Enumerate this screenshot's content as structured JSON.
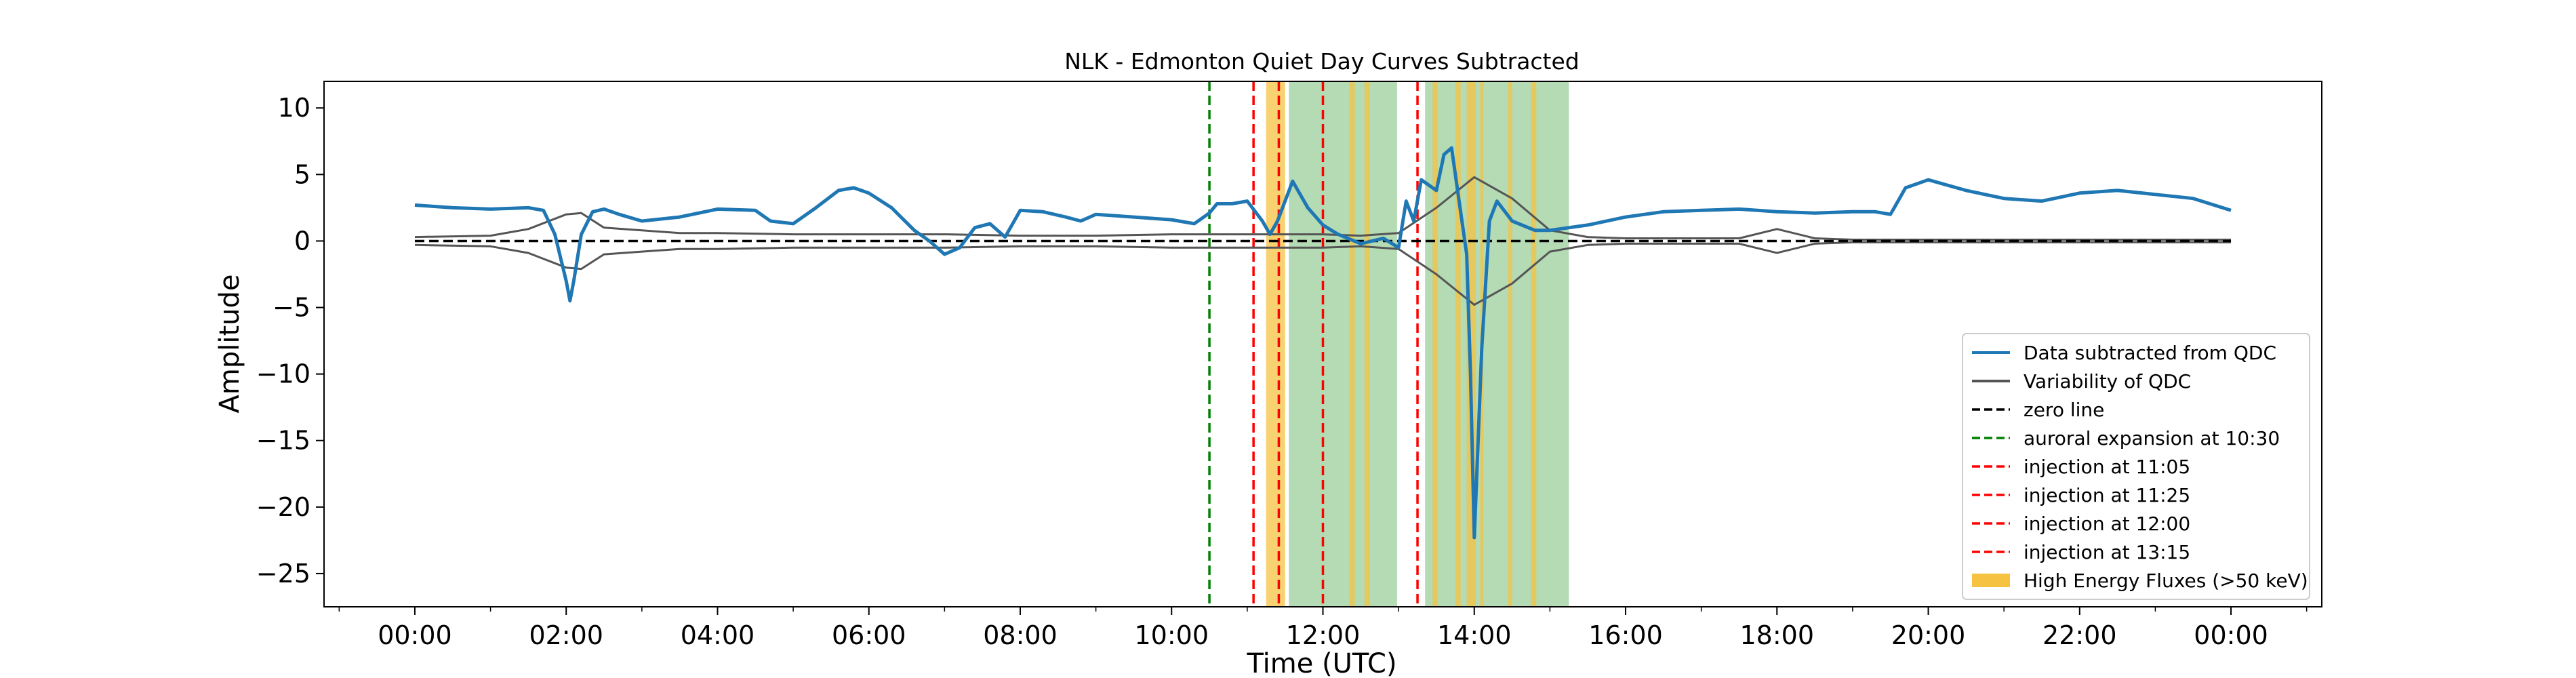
{
  "chart_data": {
    "type": "line",
    "title": "NLK - Edmonton  Quiet Day Curves Subtracted",
    "xlabel": "Time (UTC)",
    "ylabel": "Amplitude",
    "xlim": [
      -1.2,
      25.2
    ],
    "ylim": [
      -27.5,
      12.0
    ],
    "x_ticks": [
      0,
      2,
      4,
      6,
      8,
      10,
      12,
      14,
      16,
      18,
      20,
      22,
      24
    ],
    "x_tick_labels": [
      "00:00",
      "02:00",
      "04:00",
      "06:00",
      "08:00",
      "10:00",
      "12:00",
      "14:00",
      "16:00",
      "18:00",
      "20:00",
      "22:00",
      "00:00"
    ],
    "y_ticks": [
      10,
      5,
      0,
      -5,
      -10,
      -15,
      -20,
      -25
    ],
    "y_tick_labels": [
      "10",
      "5",
      "0",
      "−5",
      "−10",
      "−15",
      "−20",
      "−25"
    ],
    "grid": false,
    "legend_position": "lower-right",
    "colors": {
      "data": "#1f77b4",
      "variability": "#555555",
      "zero": "#000000",
      "auroral": "#008000",
      "injection": "#ff0000",
      "high_energy": "#f5c242",
      "green_band": "#82c382"
    },
    "series": [
      {
        "name": "Data subtracted from QDC",
        "x": [
          0,
          0.5,
          1.0,
          1.5,
          1.7,
          1.85,
          2.0,
          2.05,
          2.1,
          2.2,
          2.35,
          2.5,
          2.7,
          3.0,
          3.5,
          4.0,
          4.5,
          4.7,
          5.0,
          5.3,
          5.6,
          5.8,
          6.0,
          6.3,
          6.6,
          6.8,
          7.0,
          7.2,
          7.4,
          7.6,
          7.8,
          8.0,
          8.3,
          8.6,
          8.8,
          9.0,
          9.5,
          10.0,
          10.3,
          10.5,
          10.6,
          10.8,
          11.0,
          11.2,
          11.3,
          11.4,
          11.6,
          11.8,
          12.0,
          12.2,
          12.5,
          12.8,
          13.0,
          13.1,
          13.2,
          13.3,
          13.5,
          13.6,
          13.7,
          13.8,
          13.9,
          13.95,
          14.0,
          14.1,
          14.2,
          14.3,
          14.5,
          14.8,
          15.0,
          15.5,
          16.0,
          16.5,
          17.0,
          17.5,
          18.0,
          18.5,
          19.0,
          19.3,
          19.5,
          19.7,
          20.0,
          20.5,
          21.0,
          21.5,
          22.0,
          22.5,
          23.0,
          23.5,
          24.0
        ],
        "y": [
          2.7,
          2.5,
          2.4,
          2.5,
          2.3,
          0.5,
          -3.0,
          -4.5,
          -3.0,
          0.5,
          2.2,
          2.4,
          2.0,
          1.5,
          1.8,
          2.4,
          2.3,
          1.5,
          1.3,
          2.5,
          3.8,
          4.0,
          3.6,
          2.5,
          0.8,
          0.0,
          -1.0,
          -0.5,
          1.0,
          1.3,
          0.3,
          2.3,
          2.2,
          1.8,
          1.5,
          2.0,
          1.8,
          1.6,
          1.3,
          2.1,
          2.8,
          2.8,
          3.0,
          1.5,
          0.5,
          1.5,
          4.5,
          2.5,
          1.2,
          0.5,
          -0.2,
          0.2,
          -0.5,
          3.0,
          1.5,
          4.6,
          3.8,
          6.5,
          7.0,
          3.0,
          -1.0,
          -10.0,
          -22.3,
          -8.0,
          1.5,
          3.0,
          1.5,
          0.8,
          0.8,
          1.2,
          1.8,
          2.2,
          2.3,
          2.4,
          2.2,
          2.1,
          2.2,
          2.2,
          2.0,
          4.0,
          4.6,
          3.8,
          3.2,
          3.0,
          3.6,
          3.8,
          3.5,
          3.2,
          2.3
        ]
      },
      {
        "name": "Variability of QDC",
        "x": [
          0,
          1.0,
          1.5,
          2.0,
          2.2,
          2.5,
          3.0,
          3.5,
          4.0,
          5.0,
          6.0,
          7.0,
          8.0,
          9.0,
          10.0,
          11.0,
          12.0,
          12.5,
          13.0,
          13.5,
          14.0,
          14.5,
          15.0,
          15.5,
          16.0,
          17.0,
          17.5,
          18.0,
          18.5,
          19.0,
          20.0,
          22.0,
          24.0
        ],
        "y": [
          0.3,
          0.4,
          0.9,
          2.0,
          2.1,
          1.0,
          0.8,
          0.6,
          0.6,
          0.5,
          0.5,
          0.5,
          0.4,
          0.4,
          0.5,
          0.5,
          0.5,
          0.4,
          0.6,
          2.5,
          4.8,
          3.2,
          0.8,
          0.3,
          0.2,
          0.2,
          0.2,
          0.9,
          0.2,
          0.1,
          0.1,
          0.1,
          0.1
        ]
      },
      {
        "name": "zero line",
        "x": [
          0,
          24
        ],
        "y": [
          0,
          0
        ]
      }
    ],
    "vlines": [
      {
        "name": "auroral expansion at 10:30",
        "x": 10.5,
        "color": "#008000"
      },
      {
        "name": "injection at 11:05",
        "x": 11.083,
        "color": "#ff0000"
      },
      {
        "name": "injection at 11:25",
        "x": 11.417,
        "color": "#ff0000"
      },
      {
        "name": "injection at 12:00",
        "x": 12.0,
        "color": "#ff0000"
      },
      {
        "name": "injection at 13:15",
        "x": 13.25,
        "color": "#ff0000"
      }
    ],
    "green_bands": [
      [
        11.55,
        12.98
      ],
      [
        13.35,
        15.25
      ]
    ],
    "high_energy_fluxes": [
      [
        11.25,
        11.5
      ],
      [
        12.35,
        12.42
      ],
      [
        12.55,
        12.62
      ],
      [
        13.45,
        13.52
      ],
      [
        13.75,
        13.82
      ],
      [
        13.9,
        14.02
      ],
      [
        14.08,
        14.12
      ],
      [
        14.45,
        14.5
      ],
      [
        14.75,
        14.82
      ]
    ],
    "legend": [
      {
        "label": "Data subtracted from QDC",
        "kind": "solid",
        "color": "#1f77b4"
      },
      {
        "label": "Variability of QDC",
        "kind": "solid",
        "color": "#555555"
      },
      {
        "label": "zero line",
        "kind": "dashed",
        "color": "#000000"
      },
      {
        "label": "auroral expansion at 10:30",
        "kind": "dashed",
        "color": "#008000"
      },
      {
        "label": "injection at 11:05",
        "kind": "dashed",
        "color": "#ff0000"
      },
      {
        "label": "injection at 11:25",
        "kind": "dashed",
        "color": "#ff0000"
      },
      {
        "label": "injection at 12:00",
        "kind": "dashed",
        "color": "#ff0000"
      },
      {
        "label": "injection at 13:15",
        "kind": "dashed",
        "color": "#ff0000"
      },
      {
        "label": "High Energy Fluxes (>50 keV)",
        "kind": "patch",
        "color": "#f5c242"
      }
    ]
  }
}
